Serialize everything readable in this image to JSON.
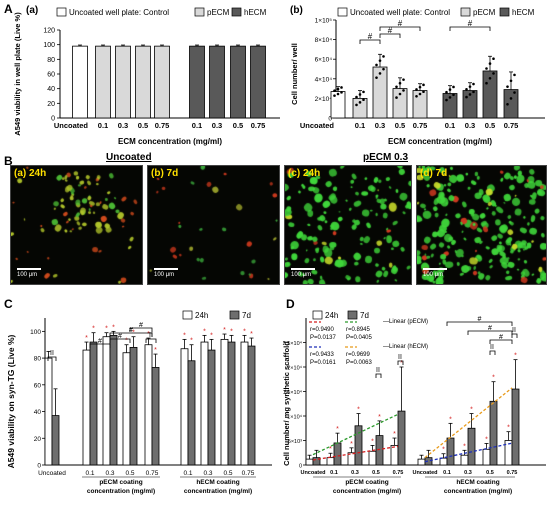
{
  "panel_labels": {
    "A": "A",
    "B": "B",
    "C": "C",
    "D": "D"
  },
  "micro_titles": {
    "uncoated": "Uncoated",
    "pecm03": "pECM 0.3"
  },
  "micro_panels": [
    {
      "label": "(a) 24h",
      "scale": "100 μm",
      "density": 0.35,
      "color": "mixed"
    },
    {
      "label": "(b) 7d",
      "scale": "100 μm",
      "density": 0.12,
      "color": "sparse"
    },
    {
      "label": "(c) 24h",
      "scale": "100 μm",
      "density": 0.55,
      "color": "green"
    },
    {
      "label": "(d) 7d",
      "scale": "100 μm",
      "density": 0.85,
      "color": "green"
    }
  ],
  "colors": {
    "control": "#ffffff",
    "pecm": "#d9d9d9",
    "hecm": "#595959",
    "c24": "#ffffff",
    "c7": "#6e6e6e",
    "red": "#d41e1e",
    "green": "#2c9a2c",
    "blue": "#1d2fb8",
    "orange": "#e89a1a"
  },
  "chart_data": [
    {
      "id": "Aa",
      "type": "bar",
      "sublabel": "(a)",
      "ylabel": "A549 viability in well plate (Live %)",
      "xlabel": "ECM concentration (mg/ml)",
      "ylim": [
        0,
        120
      ],
      "yticks": [
        0,
        20,
        40,
        60,
        80,
        100,
        120
      ],
      "legend": [
        "Uncoated well plate: Control",
        "pECM",
        "hECM"
      ],
      "categories": [
        "Uncoated",
        "0.1",
        "0.3",
        "0.5",
        "0.75",
        "0.1",
        "0.3",
        "0.5",
        "0.75"
      ],
      "groups": [
        "control",
        "pecm",
        "pecm",
        "pecm",
        "pecm",
        "hecm",
        "hecm",
        "hecm",
        "hecm"
      ],
      "values": [
        98,
        98,
        98,
        98,
        98,
        98,
        98,
        98,
        98
      ],
      "errors": [
        1.5,
        1.5,
        1.5,
        1.5,
        1.5,
        1.5,
        1.5,
        1.5,
        1.5
      ]
    },
    {
      "id": "Ab",
      "type": "bar",
      "sublabel": "(b)",
      "ylabel": "Cell number/ well",
      "xlabel": "ECM concentration (mg/ml)",
      "ylim": [
        0,
        100000
      ],
      "yticks": [
        "0",
        "2×10⁴",
        "4×10⁴",
        "6×10⁴",
        "8×10⁴",
        "1×10⁵"
      ],
      "legend": [
        "Uncoated well plate: Control",
        "pECM",
        "hECM"
      ],
      "categories": [
        "Uncoated",
        "0.1",
        "0.3",
        "0.5",
        "0.75",
        "0.1",
        "0.3",
        "0.5",
        "0.75"
      ],
      "groups": [
        "control",
        "pecm",
        "pecm",
        "pecm",
        "pecm",
        "hecm",
        "hecm",
        "hecm",
        "hecm"
      ],
      "values": [
        27000,
        20000,
        52000,
        30000,
        28000,
        25000,
        28000,
        48000,
        29000
      ],
      "errors": [
        5000,
        8000,
        13000,
        11000,
        7000,
        8000,
        8000,
        15000,
        18000
      ],
      "sig_mark": "#"
    },
    {
      "id": "C",
      "type": "bar",
      "ylabel": "A549 viability on syn-TG (Live %)",
      "xlabel_p": "pECM coating concentration (mg/ml)",
      "xlabel_h": "hECM coating concentration (mg/ml)",
      "ylim": [
        0,
        110
      ],
      "yticks": [
        0,
        20,
        40,
        60,
        80,
        100
      ],
      "legend": [
        "24h",
        "7d"
      ],
      "categories": [
        "Uncoated",
        "0.1",
        "0.3",
        "0.5",
        "0.75",
        "0.1",
        "0.3",
        "0.5",
        "0.75"
      ],
      "series": [
        {
          "name": "24h",
          "values": [
            80,
            86,
            96,
            84,
            90,
            87,
            92,
            94,
            92
          ],
          "errors": [
            5,
            6,
            3,
            6,
            5,
            7,
            5,
            4,
            5
          ]
        },
        {
          "name": "7d",
          "values": [
            37,
            92,
            97,
            88,
            73,
            78,
            86,
            92,
            89
          ],
          "errors": [
            20,
            7,
            3,
            8,
            10,
            12,
            8,
            5,
            6
          ]
        }
      ],
      "sig_mark": "#",
      "sig_mark2": "II"
    },
    {
      "id": "D",
      "type": "bar",
      "ylabel": "Cell number/ mg synthetic scaffold",
      "xlabel_p": "pECM coating concentration (mg/ml)",
      "xlabel_h": "hECM coating concentration (mg/ml)",
      "ylim": [
        0,
        30000
      ],
      "yticks": [
        "0",
        "5×10³",
        "1×10⁴",
        "1.5×10⁴",
        "2×10⁴",
        "2.5×10⁴"
      ],
      "legend": [
        "24h",
        "7d"
      ],
      "fit_pecm": {
        "name": "Linear (pECM)",
        "r24": "r=0.9490",
        "p24": "P=0.0137",
        "r7": "r=0.8945",
        "p7": "P=0.0405"
      },
      "fit_hecm": {
        "name": "Linear (hECM)",
        "r24": "r=0.9433",
        "p24": "P=0.0161",
        "r7": "r=0.9699",
        "p7": "P=0.0063"
      },
      "categories": [
        "Uncoated",
        "0.1",
        "0.3",
        "0.5",
        "0.75",
        "Uncoated",
        "0.1",
        "0.3",
        "0.5",
        "0.75"
      ],
      "series": [
        {
          "name": "24h",
          "values": [
            1200,
            1500,
            2500,
            2800,
            4000,
            1200,
            1400,
            2000,
            3200,
            5000
          ],
          "errors": [
            800,
            900,
            1000,
            1200,
            1500,
            800,
            900,
            1000,
            1200,
            1800
          ]
        },
        {
          "name": "7d",
          "values": [
            1500,
            4500,
            8000,
            6000,
            11000,
            1500,
            5500,
            7500,
            13000,
            15500
          ],
          "errors": [
            1500,
            2000,
            2500,
            3000,
            9000,
            1500,
            3000,
            3000,
            4000,
            6000
          ]
        }
      ],
      "sig_mark": "#",
      "sig_mark2": "II"
    }
  ]
}
